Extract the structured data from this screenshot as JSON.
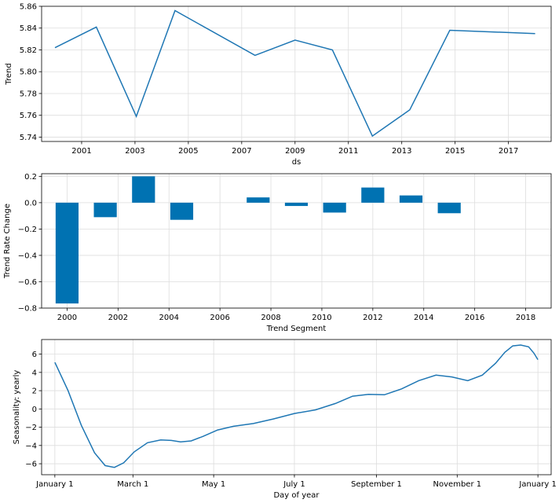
{
  "colors": {
    "series": "#0072B2",
    "line": "#1f77b4",
    "grid": "#dddddd"
  },
  "chart_data": [
    {
      "type": "line",
      "xlabel": "ds",
      "ylabel": "Trend",
      "grid": true,
      "xlim": [
        1999.5,
        2018.6
      ],
      "ylim": [
        5.736,
        5.86
      ],
      "xticks": [
        2001,
        2003,
        2005,
        2007,
        2009,
        2011,
        2013,
        2015,
        2017
      ],
      "xtick_labels": [
        "2001",
        "2003",
        "2005",
        "2007",
        "2009",
        "2011",
        "2013",
        "2015",
        "2017"
      ],
      "yticks": [
        5.74,
        5.76,
        5.78,
        5.8,
        5.82,
        5.84,
        5.86
      ],
      "ytick_labels": [
        "5.74",
        "5.76",
        "5.78",
        "5.80",
        "5.82",
        "5.84",
        "5.86"
      ],
      "series": [
        {
          "x": [
            2000.0,
            2001.55,
            2003.05,
            2004.5,
            2007.5,
            2009.0,
            2010.4,
            2011.9,
            2013.3,
            2014.8,
            2018.0
          ],
          "y": [
            5.822,
            5.841,
            5.759,
            5.856,
            5.815,
            5.829,
            5.82,
            5.741,
            5.765,
            5.838,
            5.835
          ]
        }
      ]
    },
    {
      "type": "bar",
      "xlabel": "Trend Segment",
      "ylabel": "Trend Rate Change",
      "grid": true,
      "xlim": [
        1999.0,
        2019.0
      ],
      "ylim": [
        -0.8,
        0.22
      ],
      "xticks": [
        2000,
        2002,
        2004,
        2006,
        2008,
        2010,
        2012,
        2014,
        2016,
        2018
      ],
      "xtick_labels": [
        "2000",
        "2002",
        "2004",
        "2006",
        "2008",
        "2010",
        "2012",
        "2014",
        "2016",
        "2018"
      ],
      "yticks": [
        -0.8,
        -0.6,
        -0.4,
        -0.2,
        0.0,
        0.2
      ],
      "ytick_labels": [
        "−0.8",
        "−0.6",
        "−0.4",
        "−0.2",
        "0.0",
        "0.2"
      ],
      "bar_width": 0.9,
      "x": [
        2000.0,
        2001.5,
        2003.0,
        2004.5,
        2006.0,
        2007.5,
        2009.0,
        2010.5,
        2012.0,
        2013.5,
        2015.0
      ],
      "values": [
        -0.765,
        -0.11,
        0.2,
        -0.13,
        0.0,
        0.04,
        -0.025,
        -0.075,
        0.115,
        0.055,
        -0.08
      ]
    },
    {
      "type": "line",
      "xlabel": "Day of year",
      "ylabel": "Seasonality: yearly",
      "grid": true,
      "xlim": [
        -10,
        375
      ],
      "ylim": [
        -7.2,
        7.6
      ],
      "xticks": [
        0,
        59,
        120,
        181,
        243,
        304,
        365
      ],
      "xtick_labels": [
        "January 1",
        "March 1",
        "May 1",
        "July 1",
        "September 1",
        "November 1",
        "January 1"
      ],
      "yticks": [
        -6,
        -4,
        -2,
        0,
        2,
        4,
        6
      ],
      "ytick_labels": [
        "−6",
        "−4",
        "−2",
        "0",
        "2",
        "4",
        "6"
      ],
      "series": [
        {
          "x": [
            0,
            10,
            20,
            30,
            38,
            45,
            52,
            60,
            70,
            80,
            88,
            95,
            103,
            112,
            123,
            135,
            150,
            165,
            181,
            197,
            212,
            225,
            237,
            249,
            262,
            275,
            288,
            300,
            312,
            323,
            333,
            340,
            346,
            352,
            358,
            362,
            365
          ],
          "y": [
            5.1,
            2.0,
            -1.8,
            -4.8,
            -6.2,
            -6.4,
            -5.9,
            -4.7,
            -3.7,
            -3.4,
            -3.45,
            -3.6,
            -3.5,
            -3.0,
            -2.3,
            -1.9,
            -1.6,
            -1.1,
            -0.5,
            -0.1,
            0.6,
            1.4,
            1.6,
            1.55,
            2.2,
            3.1,
            3.7,
            3.5,
            3.1,
            3.7,
            5.0,
            6.2,
            6.9,
            7.0,
            6.8,
            6.1,
            5.4
          ]
        }
      ]
    }
  ]
}
